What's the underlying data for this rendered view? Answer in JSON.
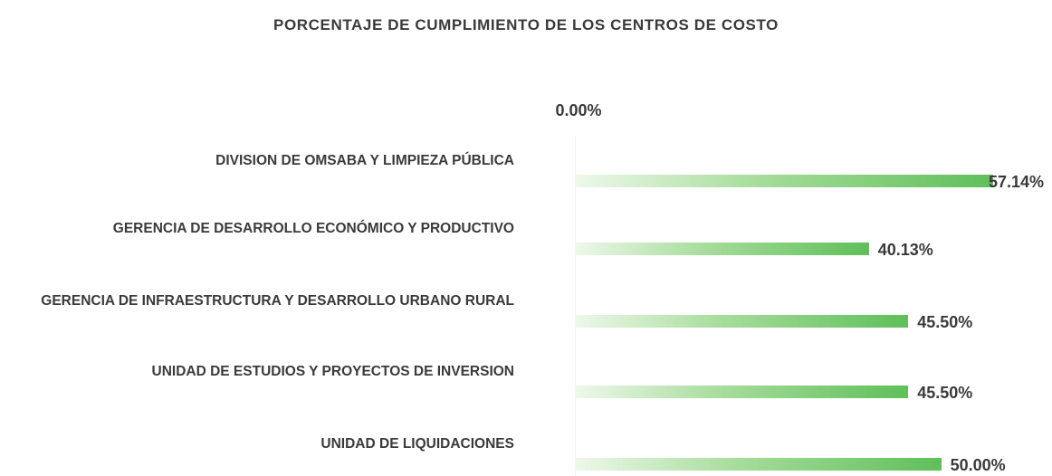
{
  "chart_data": {
    "type": "bar",
    "orientation": "horizontal",
    "title": "PORCENTAJE DE CUMPLIMIENTO DE LOS CENTROS DE COSTO",
    "categories": [
      "DIVISION DE OMSABA  Y LIMPIEZA PÚBLICA",
      "GERENCIA DE DESARROLLO ECONÓMICO Y PRODUCTIVO",
      "GERENCIA DE INFRAESTRUCTURA Y DESARROLLO URBANO RURAL",
      "UNIDAD DE ESTUDIOS Y PROYECTOS DE INVERSION",
      "UNIDAD DE LIQUIDACIONES"
    ],
    "values": [
      57.14,
      40.13,
      45.5,
      45.5,
      50.0
    ],
    "value_labels": [
      "57.14%",
      "40.13%",
      "45.50%",
      "45.50%",
      "50.00%"
    ],
    "color": "#5fbf5a",
    "xlim": [
      0,
      65
    ],
    "xticks": [
      {
        "value": 0,
        "label": "0.00%"
      }
    ],
    "grid": true
  }
}
